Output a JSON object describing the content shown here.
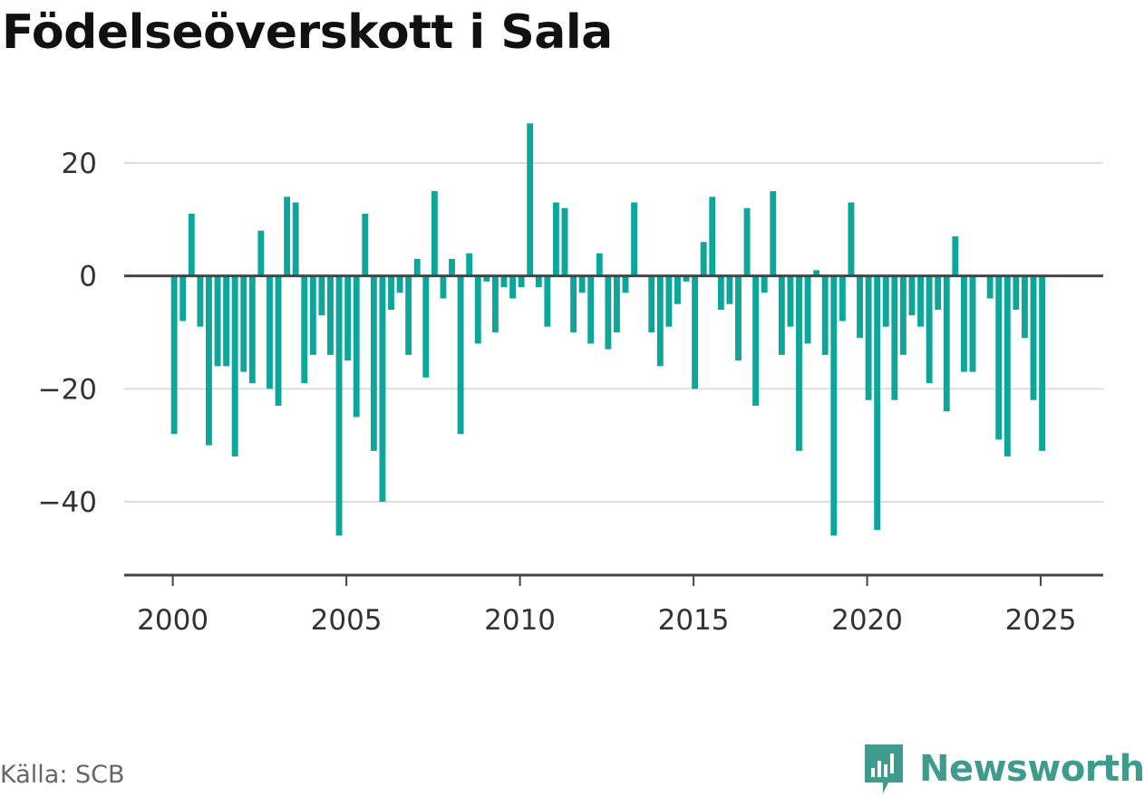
{
  "title": "Födelseöverskott i Sala",
  "source": "Källa: SCB",
  "brand": {
    "name": "Newsworthy",
    "logo_icon": "newsworthy-logo-icon",
    "color": "#3f9c8c"
  },
  "colors": {
    "bar": "#0ea69b",
    "grid": "#dddddd",
    "zero": "#444444",
    "axis": "#444444"
  },
  "chart_data": {
    "type": "bar",
    "title": "Födelseöverskott i Sala",
    "xlabel": "",
    "ylabel": "",
    "ylim": [
      -53,
      28
    ],
    "xlim": [
      1998.6,
      2026.8
    ],
    "grid": true,
    "y_ticks": [
      20,
      0,
      -20,
      -40
    ],
    "y_tick_labels": [
      "20",
      "0",
      "−20",
      "−40"
    ],
    "x_ticks": [
      2000,
      2005,
      2010,
      2015,
      2020,
      2025
    ],
    "x_tick_labels": [
      "2000",
      "2005",
      "2010",
      "2015",
      "2020",
      "2025"
    ],
    "start": "2000-01",
    "frequency": "quarterly",
    "values": [
      -28,
      -8,
      11,
      -9,
      -30,
      -16,
      -16,
      -32,
      -17,
      -19,
      8,
      -20,
      -23,
      14,
      13,
      -19,
      -14,
      -7,
      -14,
      -46,
      -15,
      -25,
      11,
      -31,
      -40,
      -6,
      -3,
      -14,
      3,
      -18,
      15,
      -4,
      3,
      -28,
      4,
      -12,
      -1,
      -10,
      -2,
      -4,
      -2,
      27,
      -2,
      -9,
      13,
      12,
      -10,
      -3,
      -12,
      4,
      -13,
      -10,
      -3,
      13,
      0,
      -10,
      -16,
      -9,
      -5,
      -1,
      -20,
      6,
      14,
      -6,
      -5,
      -15,
      12,
      -23,
      -3,
      15,
      -14,
      -9,
      -31,
      -12,
      1,
      -14,
      -46,
      -8,
      13,
      -11,
      -22,
      -45,
      -9,
      -22,
      -14,
      -7,
      -9,
      -19,
      -6,
      -24,
      7,
      -17,
      -17,
      0,
      -4,
      -29,
      -32,
      -6,
      -11,
      -22,
      -31
    ]
  }
}
